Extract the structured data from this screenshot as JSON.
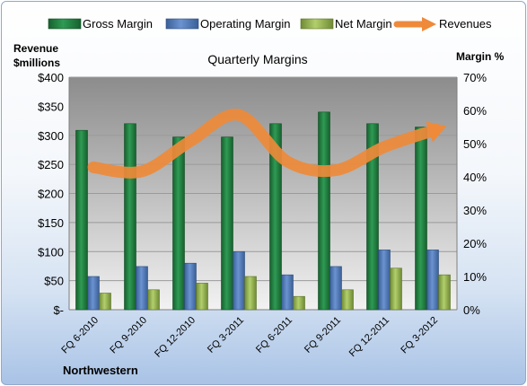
{
  "chart_data": {
    "type": "bar",
    "title": "Quarterly Margins",
    "company": "Northwestern",
    "y_left_label_line1": "Revenue",
    "y_left_label_line2": "$millions",
    "y_right_label": "Margin %",
    "y_left_range": [
      0,
      400
    ],
    "y_right_range": [
      0,
      70
    ],
    "y_left_ticks": [
      "$-",
      "$50",
      "$100",
      "$150",
      "$200",
      "$250",
      "$300",
      "$350",
      "$400"
    ],
    "y_right_ticks": [
      "0%",
      "10%",
      "20%",
      "30%",
      "40%",
      "50%",
      "60%",
      "70%"
    ],
    "categories": [
      "FQ 6-2010",
      "FQ 9-2010",
      "FQ 12-2010",
      "FQ 3-2011",
      "FQ 6-2011",
      "FQ 9-2011",
      "FQ 12-2011",
      "FQ 3-2012"
    ],
    "grid": true,
    "legend_position": "top",
    "series": [
      {
        "name": "Gross Margin",
        "axis": "right",
        "type": "bar",
        "color": "#1f7a3c",
        "values": [
          54,
          56,
          52,
          52,
          56,
          59.5,
          56,
          55
        ]
      },
      {
        "name": "Operating Margin",
        "axis": "right",
        "type": "bar",
        "color": "#4e78b8",
        "values": [
          10,
          13,
          14,
          17.5,
          10.5,
          13,
          18,
          18
        ]
      },
      {
        "name": "Net Margin",
        "axis": "right",
        "type": "bar",
        "color": "#9bbb59",
        "values": [
          5,
          6,
          8,
          10,
          4,
          6,
          12.5,
          10.5
        ]
      },
      {
        "name": "Revenues",
        "axis": "left",
        "type": "line",
        "color": "#ee8a3a",
        "values": [
          245,
          238,
          290,
          335,
          255,
          240,
          280,
          308
        ]
      }
    ]
  }
}
